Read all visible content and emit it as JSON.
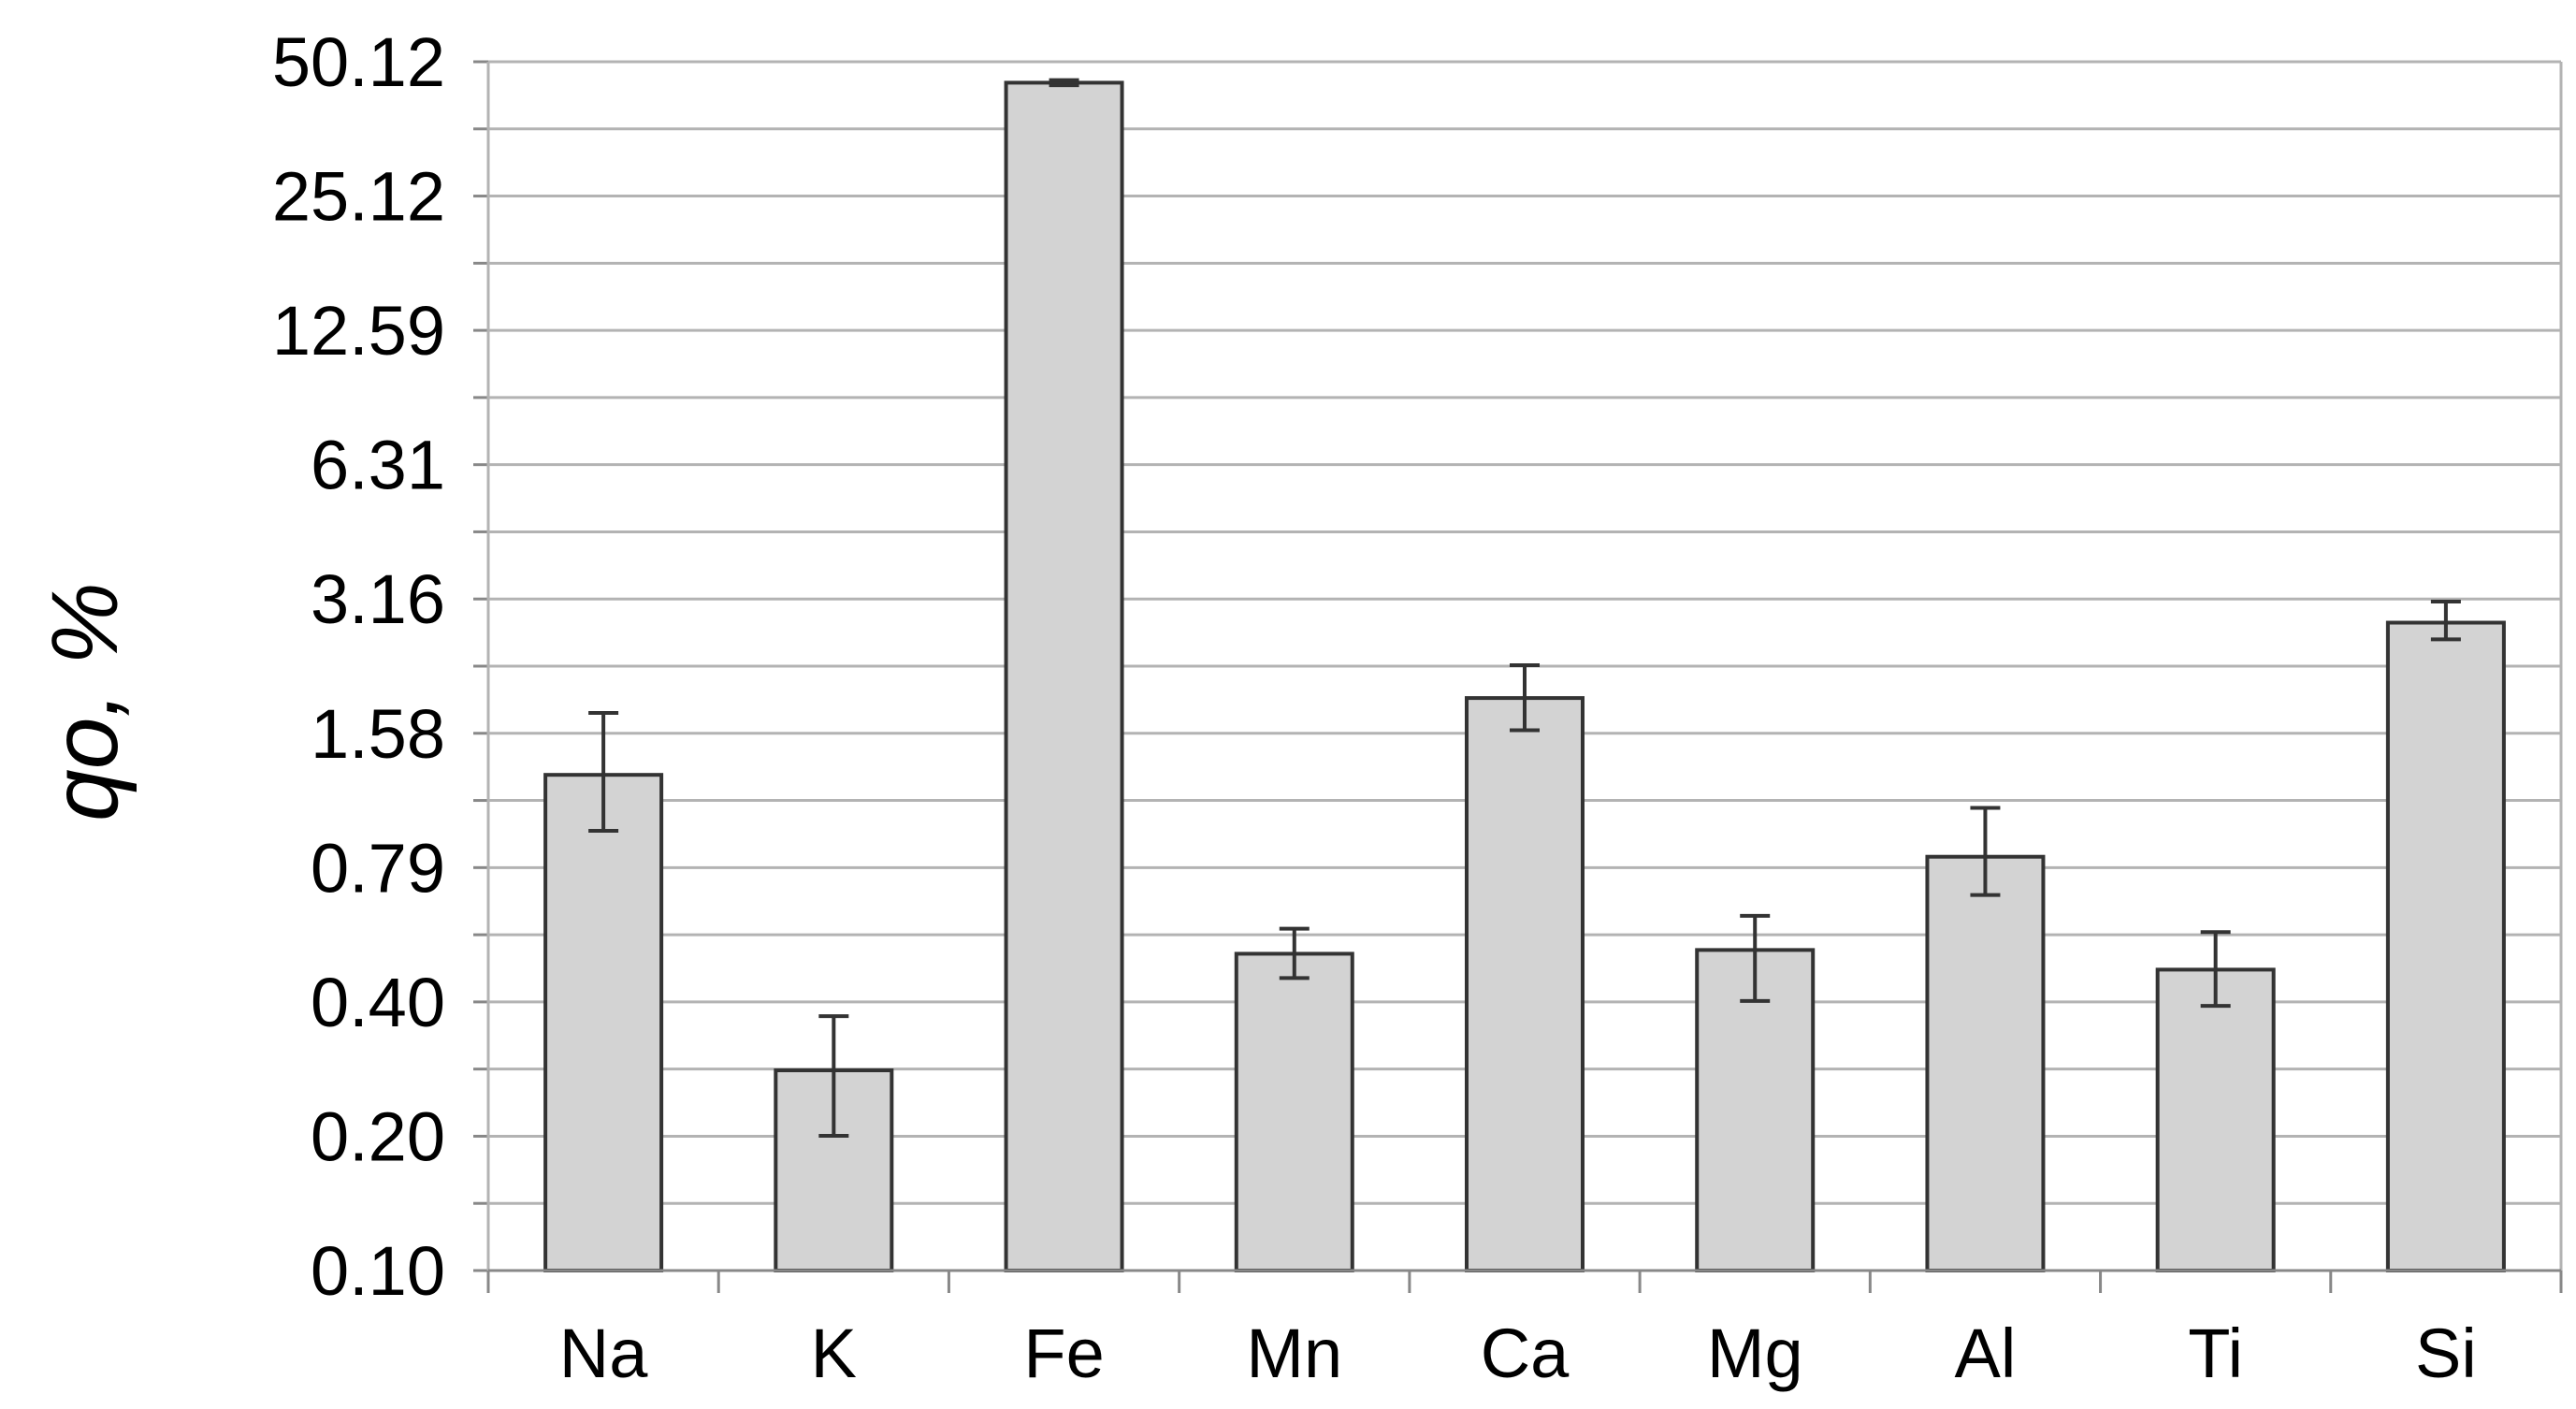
{
  "chart_data": {
    "type": "bar",
    "xlabel": "",
    "ylabel": "qo, %",
    "yscale": "log",
    "ylim": [
      0.1,
      50.12
    ],
    "yticks": [
      "0.10",
      "0.20",
      "0.40",
      "0.79",
      "1.58",
      "3.16",
      "6.31",
      "12.59",
      "25.12",
      "50.12"
    ],
    "categories": [
      "Na",
      "K",
      "Fe",
      "Mn",
      "Ca",
      "Mg",
      "Al",
      "Ti",
      "Si"
    ],
    "values": [
      1.28,
      0.28,
      45.0,
      0.51,
      1.9,
      0.52,
      0.84,
      0.47,
      2.8
    ],
    "error_low": [
      0.96,
      0.2,
      44.4,
      0.45,
      1.61,
      0.4,
      0.69,
      0.39,
      2.57
    ],
    "error_high": [
      1.76,
      0.37,
      45.6,
      0.58,
      2.25,
      0.62,
      1.08,
      0.57,
      3.12
    ],
    "grid": true,
    "bar_color": "#d3d3d3",
    "bar_edge_color": "#333333",
    "grid_color": "#b3b3b3"
  }
}
